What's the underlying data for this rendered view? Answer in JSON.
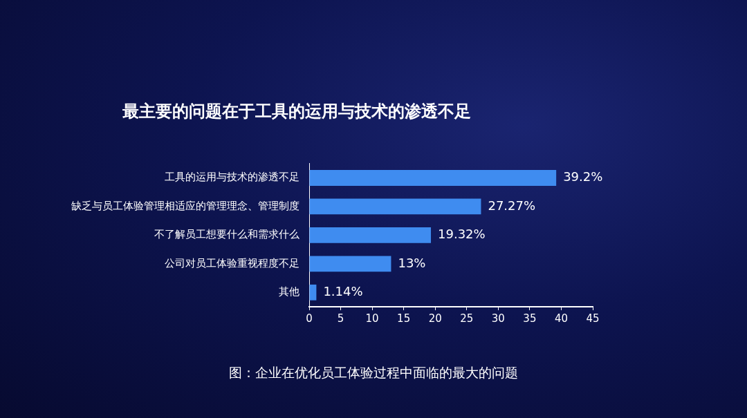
{
  "chart_data": {
    "type": "bar",
    "orientation": "horizontal",
    "title": "最主要的问题在于工具的运用与技术的渗透不足",
    "categories": [
      "工具的运用与技术的渗透不足",
      "缺乏与员工体验管理相适应的管理理念、管理制度",
      "不了解员工想要什么和需求什么",
      "公司对员工体验重视程度不足",
      "其他"
    ],
    "values": [
      39.2,
      27.27,
      19.32,
      13,
      1.14
    ],
    "value_labels": [
      "39.2%",
      "27.27%",
      "19.32%",
      "13%",
      "1.14%"
    ],
    "color": "#3f8cf0",
    "xlim": [
      0,
      45
    ],
    "xticks": [
      0,
      5,
      10,
      15,
      20,
      25,
      30,
      35,
      40,
      45
    ],
    "grid": false,
    "legend": false,
    "annotations": [
      "图：企业在优化员工体验过程中面临的最大的问题"
    ]
  }
}
